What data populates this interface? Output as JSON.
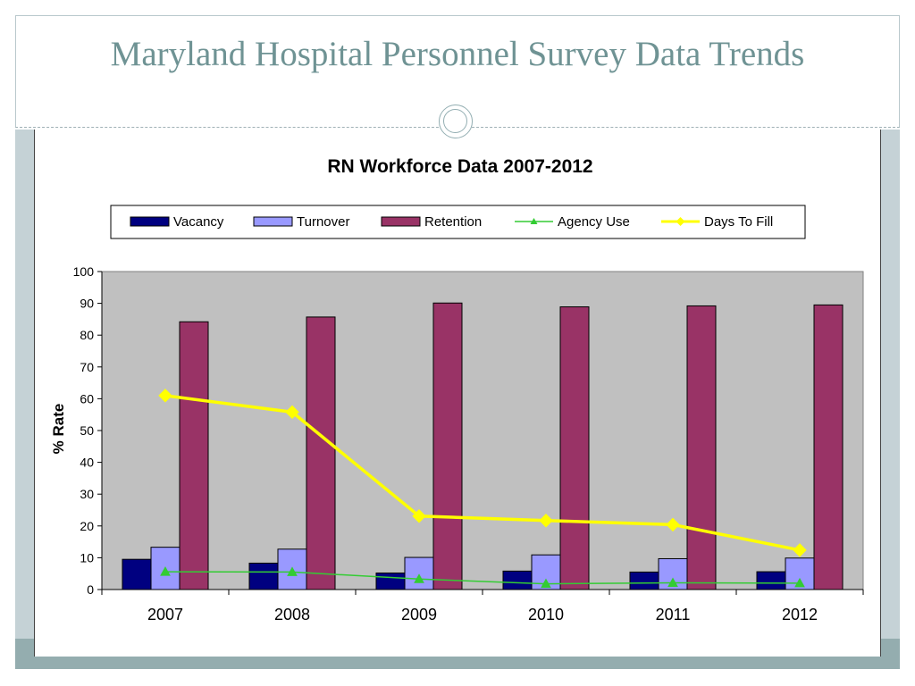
{
  "slide": {
    "title": "Maryland Hospital Personnel Survey Data Trends"
  },
  "chart_data": {
    "type": "bar",
    "title": "RN Workforce Data 2007-2012",
    "xlabel": "",
    "ylabel": "% Rate",
    "ylim": [
      0,
      100
    ],
    "yticks": [
      0,
      10,
      20,
      30,
      40,
      50,
      60,
      70,
      80,
      90,
      100
    ],
    "categories": [
      "2007",
      "2008",
      "2009",
      "2010",
      "2011",
      "2012"
    ],
    "series": [
      {
        "name": "Vacancy",
        "kind": "bar",
        "color": "#000080",
        "values": [
          9.5,
          8.3,
          5.2,
          5.8,
          5.5,
          5.6
        ]
      },
      {
        "name": "Turnover",
        "kind": "bar",
        "color": "#9999ff",
        "values": [
          13.3,
          12.7,
          10.1,
          10.9,
          9.7,
          9.9
        ]
      },
      {
        "name": "Retention",
        "kind": "bar",
        "color": "#993366",
        "values": [
          84.2,
          85.7,
          90.1,
          88.9,
          89.2,
          89.5
        ]
      },
      {
        "name": "Agency Use",
        "kind": "line",
        "marker": "triangle",
        "color": "#33cc33",
        "values": [
          5.6,
          5.5,
          3.3,
          1.8,
          2.1,
          2.0
        ]
      },
      {
        "name": "Days To Fill",
        "kind": "line",
        "marker": "diamond",
        "color": "#ffff00",
        "values": [
          61.0,
          55.8,
          23.1,
          21.7,
          20.4,
          12.4
        ]
      }
    ],
    "grid": false,
    "legend": "top",
    "plot_background": "#c0c0c0"
  }
}
